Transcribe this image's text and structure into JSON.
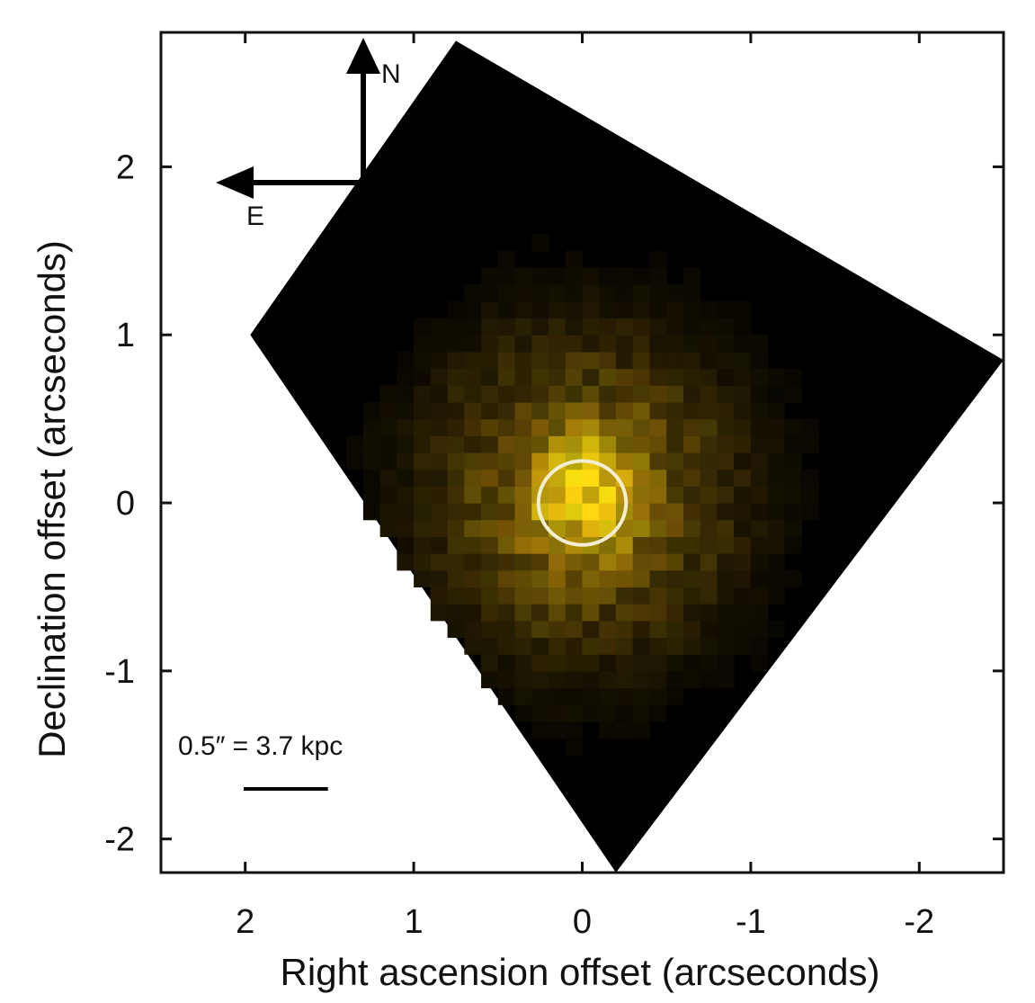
{
  "chart_data": {
    "type": "heatmap",
    "title": "",
    "xlabel": "Right ascension offset (arcseconds)",
    "ylabel": "Declination offset (arcseconds)",
    "xlim": [
      2.5,
      -2.5
    ],
    "ylim": [
      -2.2,
      2.8
    ],
    "x_ticks": [
      2,
      1,
      0,
      -1,
      -2
    ],
    "y_ticks": [
      2,
      1,
      0,
      -1,
      -2
    ],
    "x_tick_labels": [
      "2",
      "1",
      "0",
      "-1",
      "-2"
    ],
    "y_tick_labels": [
      "2",
      "1",
      "0",
      "-1",
      "-2"
    ],
    "pixel_size_arcsec": 0.1,
    "field_of_view_corners": [
      [
        1.97,
        1.0
      ],
      [
        0.75,
        2.75
      ],
      [
        -2.5,
        0.85
      ],
      [
        -0.2,
        -2.2
      ]
    ],
    "emission_center": [
      0.0,
      0.0
    ],
    "emission_peak_color": "#ffe21a",
    "emission_halo_color": "#b08a10",
    "field_background_color": "#000000",
    "aperture_ellipse": {
      "center": [
        0.0,
        0.0
      ],
      "semi_major_arcsec": 0.26,
      "semi_minor_arcsec": 0.25,
      "color": "#f3eed2"
    },
    "compass": {
      "north_label": "N",
      "east_label": "E"
    },
    "scale_bar": {
      "label": "0.5″ = 3.7 kpc",
      "length_arcsec": 0.5
    }
  }
}
